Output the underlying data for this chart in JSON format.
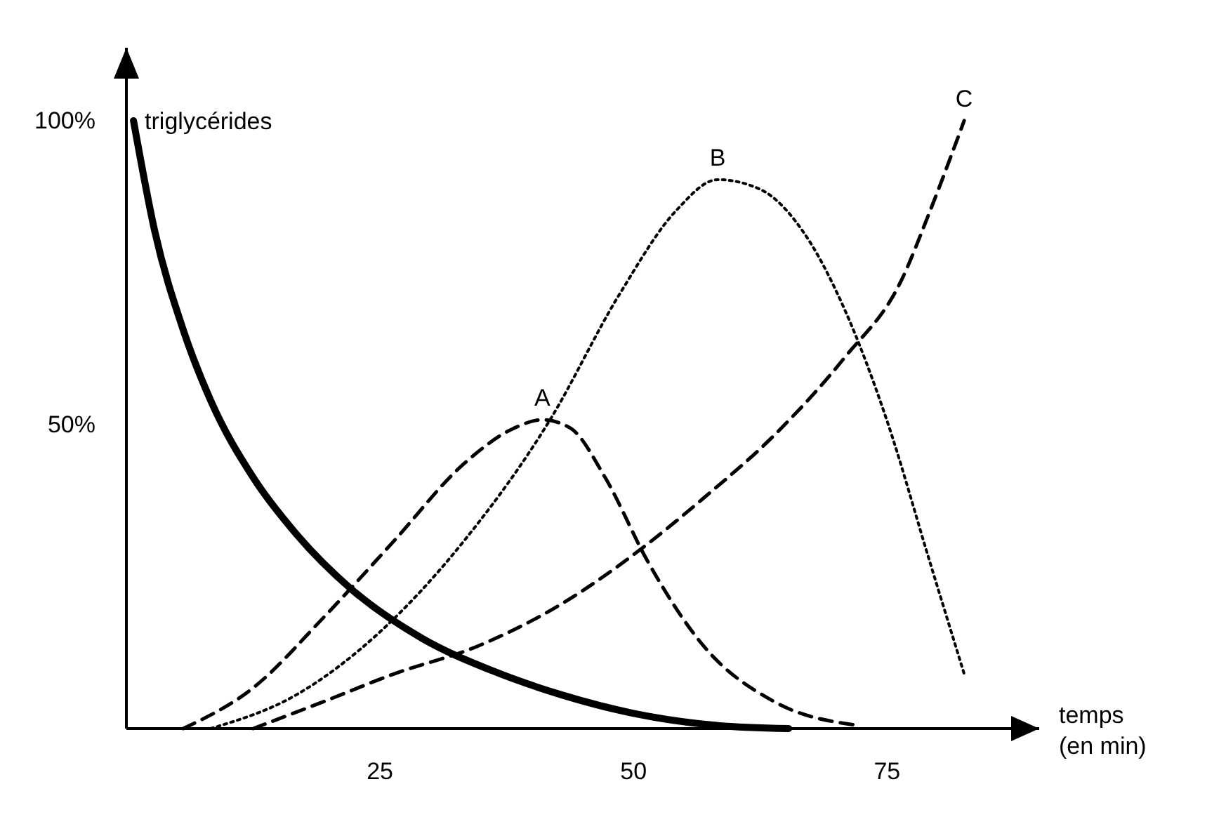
{
  "chart_data": {
    "type": "line",
    "xlabel": "temps\n(en min)",
    "xlim": [
      0,
      90
    ],
    "ylim": [
      0,
      112
    ],
    "xticks": [
      25,
      50,
      75
    ],
    "yticks": [
      {
        "value": 50,
        "label": "50%"
      },
      {
        "value": 100,
        "label": "100%"
      }
    ],
    "grid": false,
    "legend": false,
    "marker": "none",
    "series": [
      {
        "name": "triglycérides",
        "color": "#000000",
        "line_style": "solid",
        "x": [
          0.7,
          2.8,
          5.6,
          8.3,
          12.5,
          16.7,
          22.2,
          29.2,
          36.1,
          43,
          50,
          58.3,
          65.3
        ],
        "values": [
          100,
          81.8,
          65.6,
          54,
          41.3,
          32.1,
          22.9,
          14.8,
          9.5,
          5.5,
          2.5,
          0.5,
          0
        ]
      },
      {
        "name": "A",
        "color": "#000000",
        "line_style": "dashed",
        "x": [
          5.6,
          12.5,
          19.4,
          26.4,
          33.3,
          38.2,
          41,
          43.8,
          47.2,
          51.4,
          56.9,
          63.9,
          72.2
        ],
        "values": [
          0,
          6.7,
          18.2,
          30.9,
          43.6,
          49.4,
          50.8,
          49.4,
          41.3,
          27.5,
          13.6,
          4.4,
          0.5
        ]
      },
      {
        "name": "B",
        "color": "#000000",
        "line_style": "dotted",
        "x": [
          8.3,
          16.7,
          25,
          33.3,
          41.7,
          48.6,
          54.2,
          58.3,
          62.5,
          66.7,
          70.8,
          75,
          79.2,
          82.6
        ],
        "values": [
          0,
          5.5,
          15.9,
          30.9,
          50.6,
          71.4,
          85.2,
          90.3,
          88.7,
          81.8,
          69,
          50.6,
          27.5,
          9
        ]
      },
      {
        "name": "C",
        "color": "#000000",
        "line_style": "dashed",
        "x": [
          12.5,
          19.4,
          26.4,
          34.7,
          43,
          50,
          56.9,
          63.9,
          70.8,
          76.4,
          79.2,
          82.6
        ],
        "values": [
          0,
          4.4,
          9,
          13.6,
          20.6,
          28.6,
          37.9,
          48.3,
          61,
          73.7,
          85,
          100
        ]
      }
    ]
  }
}
